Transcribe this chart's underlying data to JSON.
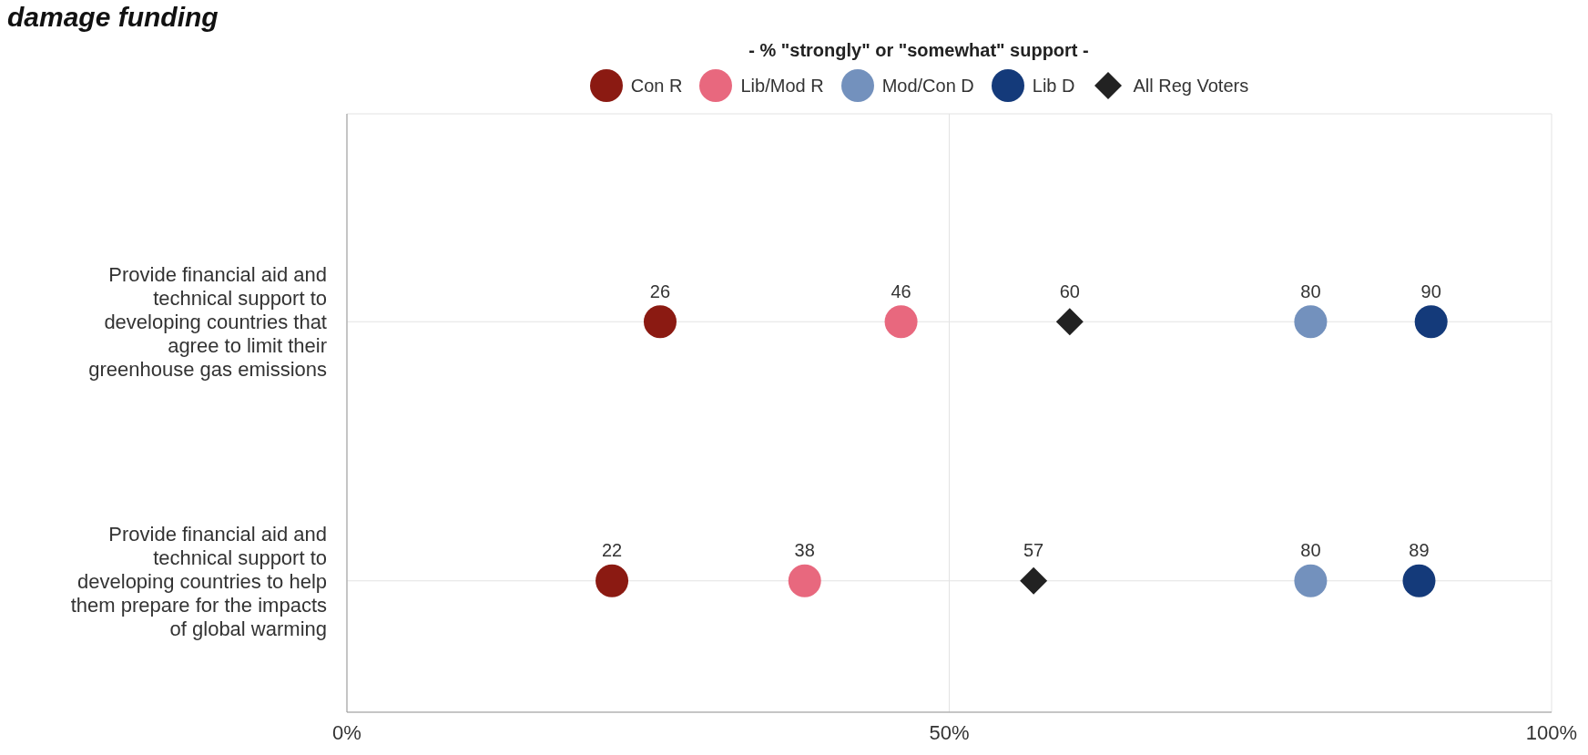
{
  "chart_data": {
    "type": "scatter",
    "orientation": "horizontal",
    "title": "damage funding",
    "subtitle": "- % \"strongly\" or \"somewhat\" support -",
    "categories": [
      "Provide financial aid and technical support to developing countries that agree to limit their greenhouse gas emissions",
      "Provide financial aid and technical support to developing countries to help them prepare for the impacts of global warming"
    ],
    "series": [
      {
        "name": "Con R",
        "color": "#8b1a12",
        "marker": "circle",
        "values": [
          26,
          22
        ]
      },
      {
        "name": "Lib/Mod R",
        "color": "#e8687e",
        "marker": "circle",
        "values": [
          46,
          38
        ]
      },
      {
        "name": "Mod/Con D",
        "color": "#7391bd",
        "marker": "circle",
        "values": [
          80,
          80
        ]
      },
      {
        "name": "Lib D",
        "color": "#143a7a",
        "marker": "circle",
        "values": [
          90,
          89
        ]
      },
      {
        "name": "All Reg Voters",
        "color": "#222222",
        "marker": "diamond",
        "values": [
          60,
          57
        ]
      }
    ],
    "xlim": [
      0,
      100
    ],
    "xticks": [
      {
        "value": 0,
        "label": "0%"
      },
      {
        "value": 50,
        "label": "50%"
      },
      {
        "value": 100,
        "label": "100%"
      }
    ],
    "grid": true,
    "legend": "top",
    "data_labels": true
  }
}
